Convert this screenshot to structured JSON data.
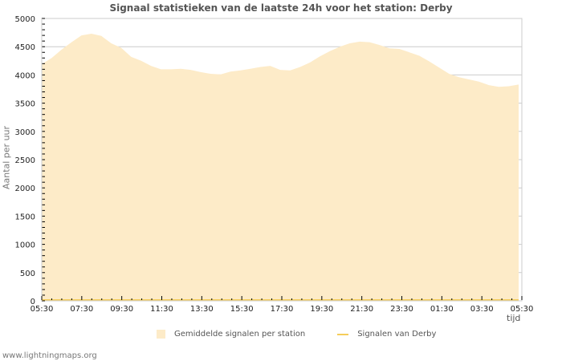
{
  "title": "Signaal statistieken van de laatste 24h voor het station: Derby",
  "footer": "www.lightningmaps.org",
  "legend": {
    "avg_label": "Gemiddelde signalen per station",
    "station_label": "Signalen van Derby",
    "avg_color": "#fdebc8",
    "station_color": "#f5cd5a"
  },
  "chart_data": {
    "type": "area",
    "title": "Signaal statistieken van de laatste 24h voor het station: Derby",
    "xlabel": "tijd",
    "ylabel": "Aantal per uur",
    "ylim": [
      0,
      5000
    ],
    "yticks": [
      0,
      500,
      1000,
      1500,
      2000,
      2500,
      3000,
      3500,
      4000,
      4500,
      5000
    ],
    "xticks": [
      "05:30",
      "07:30",
      "09:30",
      "11:30",
      "13:30",
      "15:30",
      "17:30",
      "19:30",
      "21:30",
      "23:30",
      "01:30",
      "03:30",
      "05:30"
    ],
    "grid": true,
    "legend_position": "bottom",
    "series": [
      {
        "name": "Gemiddelde signalen per station",
        "type": "area",
        "color": "#fdebc8",
        "x": [
          "05:30",
          "06:00",
          "06:30",
          "07:00",
          "07:30",
          "08:00",
          "08:30",
          "09:00",
          "09:30",
          "10:00",
          "10:30",
          "11:00",
          "11:30",
          "12:00",
          "12:30",
          "13:00",
          "13:30",
          "14:00",
          "14:30",
          "15:00",
          "15:30",
          "16:00",
          "16:30",
          "17:00",
          "17:30",
          "18:00",
          "18:30",
          "19:00",
          "19:30",
          "20:00",
          "20:30",
          "21:00",
          "21:30",
          "22:00",
          "22:30",
          "23:00",
          "23:30",
          "00:00",
          "00:30",
          "01:00",
          "01:30",
          "02:00",
          "02:30",
          "03:00",
          "03:30",
          "04:00",
          "04:30",
          "05:00",
          "05:20"
        ],
        "values": [
          4190,
          4300,
          4450,
          4580,
          4700,
          4730,
          4690,
          4560,
          4480,
          4320,
          4250,
          4160,
          4100,
          4100,
          4110,
          4090,
          4050,
          4020,
          4010,
          4060,
          4080,
          4110,
          4140,
          4160,
          4090,
          4080,
          4140,
          4220,
          4330,
          4420,
          4500,
          4560,
          4590,
          4580,
          4530,
          4470,
          4460,
          4400,
          4340,
          4240,
          4130,
          4020,
          3960,
          3920,
          3880,
          3820,
          3790,
          3800,
          3830
        ]
      },
      {
        "name": "Signalen van Derby",
        "type": "line",
        "color": "#f5cd5a",
        "values": [
          0
        ]
      }
    ]
  }
}
